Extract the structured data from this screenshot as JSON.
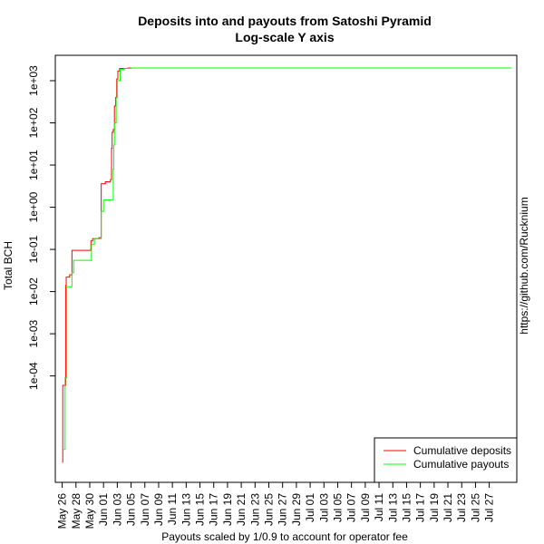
{
  "chart_data": {
    "type": "line",
    "title": "Deposits into and payouts from Satoshi Pyramid",
    "subtitle": "Log-scale Y axis",
    "xlabel": "Payouts scaled by 1/0.9 to account for operator fee",
    "ylabel": "Total BCH",
    "side_label": "https://github.com/Rucknium",
    "y_scale": "log",
    "ylim": [
      3e-07,
      4000
    ],
    "xlim": [
      "2018-05-25",
      "2018-07-31"
    ],
    "y_ticks": [
      {
        "value": 0.0001,
        "label": "1e-04"
      },
      {
        "value": 0.001,
        "label": "1e-03"
      },
      {
        "value": 0.01,
        "label": "1e-02"
      },
      {
        "value": 0.1,
        "label": "1e-01"
      },
      {
        "value": 1,
        "label": "1e+00"
      },
      {
        "value": 10,
        "label": "1e+01"
      },
      {
        "value": 100,
        "label": "1e+02"
      },
      {
        "value": 1000,
        "label": "1e+03"
      }
    ],
    "x_ticks": [
      {
        "value": "2018-05-26",
        "label": "May 26"
      },
      {
        "value": "2018-05-28",
        "label": "May 28"
      },
      {
        "value": "2018-05-30",
        "label": "May 30"
      },
      {
        "value": "2018-06-01",
        "label": "Jun 01"
      },
      {
        "value": "2018-06-03",
        "label": "Jun 03"
      },
      {
        "value": "2018-06-05",
        "label": "Jun 05"
      },
      {
        "value": "2018-06-07",
        "label": "Jun 07"
      },
      {
        "value": "2018-06-09",
        "label": "Jun 09"
      },
      {
        "value": "2018-06-11",
        "label": "Jun 11"
      },
      {
        "value": "2018-06-13",
        "label": "Jun 13"
      },
      {
        "value": "2018-06-15",
        "label": "Jun 15"
      },
      {
        "value": "2018-06-17",
        "label": "Jun 17"
      },
      {
        "value": "2018-06-19",
        "label": "Jun 19"
      },
      {
        "value": "2018-06-21",
        "label": "Jun 21"
      },
      {
        "value": "2018-06-23",
        "label": "Jun 23"
      },
      {
        "value": "2018-06-25",
        "label": "Jun 25"
      },
      {
        "value": "2018-06-27",
        "label": "Jun 27"
      },
      {
        "value": "2018-06-29",
        "label": "Jun 29"
      },
      {
        "value": "2018-07-01",
        "label": "Jul 01"
      },
      {
        "value": "2018-07-03",
        "label": "Jul 03"
      },
      {
        "value": "2018-07-05",
        "label": "Jul 05"
      },
      {
        "value": "2018-07-07",
        "label": "Jul 07"
      },
      {
        "value": "2018-07-09",
        "label": "Jul 09"
      },
      {
        "value": "2018-07-11",
        "label": "Jul 11"
      },
      {
        "value": "2018-07-13",
        "label": "Jul 13"
      },
      {
        "value": "2018-07-15",
        "label": "Jul 15"
      },
      {
        "value": "2018-07-17",
        "label": "Jul 17"
      },
      {
        "value": "2018-07-19",
        "label": "Jul 19"
      },
      {
        "value": "2018-07-21",
        "label": "Jul 21"
      },
      {
        "value": "2018-07-23",
        "label": "Jul 23"
      },
      {
        "value": "2018-07-25",
        "label": "Jul 25"
      },
      {
        "value": "2018-07-27",
        "label": "Jul 27"
      }
    ],
    "legend_position": "bottom-right",
    "series": [
      {
        "name": "Cumulative deposits",
        "color": "#ff0000",
        "step": true,
        "points": [
          [
            "2018-05-26 00:00",
            9e-07
          ],
          [
            "2018-05-26 02:00",
            6e-05
          ],
          [
            "2018-05-26 12:00",
            0.014
          ],
          [
            "2018-05-26 14:00",
            0.022
          ],
          [
            "2018-05-27 02:00",
            0.025
          ],
          [
            "2018-05-27 10:00",
            0.095
          ],
          [
            "2018-05-30 04:00",
            0.16
          ],
          [
            "2018-05-30 10:00",
            0.18
          ],
          [
            "2018-05-31 08:00",
            0.19
          ],
          [
            "2018-05-31 16:00",
            3.6
          ],
          [
            "2018-06-01 06:00",
            4.0
          ],
          [
            "2018-06-02 00:00",
            4.5
          ],
          [
            "2018-06-02 04:00",
            25
          ],
          [
            "2018-06-02 06:00",
            60
          ],
          [
            "2018-06-02 10:00",
            70
          ],
          [
            "2018-06-02 14:00",
            250
          ],
          [
            "2018-06-02 18:00",
            400
          ],
          [
            "2018-06-02 22:00",
            1100
          ],
          [
            "2018-06-03 02:00",
            1700
          ],
          [
            "2018-06-03 08:00",
            1950
          ],
          [
            "2018-06-04 12:00",
            2000
          ],
          [
            "2018-07-30 00:00",
            2000
          ]
        ]
      },
      {
        "name": "Cumulative payouts",
        "color": "#00ff00",
        "step": true,
        "points": [
          [
            "2018-05-26 06:00",
            1.8e-06
          ],
          [
            "2018-05-26 10:00",
            9e-05
          ],
          [
            "2018-05-26 16:00",
            0.013
          ],
          [
            "2018-05-27 10:00",
            0.028
          ],
          [
            "2018-05-27 16:00",
            0.055
          ],
          [
            "2018-05-30 06:00",
            0.13
          ],
          [
            "2018-05-30 16:00",
            0.18
          ],
          [
            "2018-05-31 16:00",
            0.8
          ],
          [
            "2018-06-01 00:00",
            1.5
          ],
          [
            "2018-06-02 10:00",
            8
          ],
          [
            "2018-06-02 12:00",
            30
          ],
          [
            "2018-06-02 14:00",
            100
          ],
          [
            "2018-06-02 20:00",
            400
          ],
          [
            "2018-06-03 00:00",
            1000
          ],
          [
            "2018-06-03 10:00",
            1850
          ],
          [
            "2018-06-04 00:00",
            1950
          ],
          [
            "2018-06-05 00:00",
            2000
          ],
          [
            "2018-07-30 06:00",
            2000
          ]
        ]
      }
    ]
  }
}
